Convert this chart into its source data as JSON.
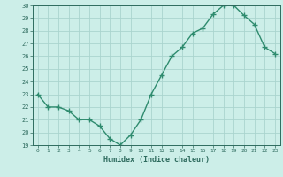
{
  "x": [
    0,
    1,
    2,
    3,
    4,
    5,
    6,
    7,
    8,
    9,
    10,
    11,
    12,
    13,
    14,
    15,
    16,
    17,
    18,
    19,
    20,
    21,
    22,
    23
  ],
  "y": [
    23,
    22,
    22,
    21.7,
    21,
    21,
    20.5,
    19.5,
    19,
    19.8,
    21,
    23,
    24.5,
    26,
    26.7,
    27.8,
    28.2,
    29.3,
    30,
    30,
    29.2,
    28.5,
    26.7,
    26.2
  ],
  "xlabel": "Humidex (Indice chaleur)",
  "ylabel": "",
  "xlim": [
    -0.5,
    23.5
  ],
  "ylim": [
    19,
    30
  ],
  "yticks": [
    19,
    20,
    21,
    22,
    23,
    24,
    25,
    26,
    27,
    28,
    29,
    30
  ],
  "xticks": [
    0,
    1,
    2,
    3,
    4,
    5,
    6,
    7,
    8,
    9,
    10,
    11,
    12,
    13,
    14,
    15,
    16,
    17,
    18,
    19,
    20,
    21,
    22,
    23
  ],
  "line_color": "#2e8b6e",
  "marker_color": "#2e8b6e",
  "bg_color": "#cceee8",
  "grid_color": "#aad4ce",
  "tick_color": "#2e6b5e",
  "label_color": "#2e6b5e"
}
